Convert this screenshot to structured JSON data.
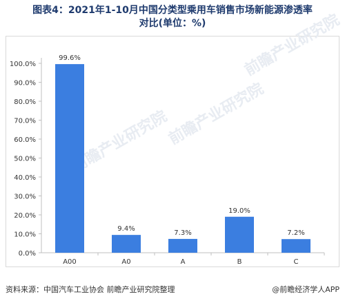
{
  "title_line1": "图表4：2021年1-10月中国分类型乘用车销售市场新能源渗透率",
  "title_line2": "对比(单位：%)",
  "footer": {
    "source": "资料来源：中国汽车工业协会 前瞻产业研究院整理",
    "brand": "@前瞻经济学人APP"
  },
  "watermark": "前瞻产业研究院",
  "colors": {
    "bar": "#3b7ee0",
    "axis": "#bfbfbf",
    "title": "#1f3b6e"
  },
  "chart_data": {
    "type": "bar",
    "categories": [
      "A00",
      "A0",
      "A",
      "B",
      "C"
    ],
    "values": [
      99.6,
      9.4,
      7.3,
      19.0,
      7.2
    ],
    "value_labels": [
      "99.6%",
      "9.4%",
      "7.3%",
      "19.0%",
      "7.2%"
    ],
    "title": "图表4：2021年1-10月中国分类型乘用车销售市场新能源渗透率对比(单位：%)",
    "xlabel": "",
    "ylabel": "",
    "ylim": [
      0,
      100
    ],
    "yticks": [
      0,
      10,
      20,
      30,
      40,
      50,
      60,
      70,
      80,
      90,
      100
    ],
    "ytick_labels": [
      "0.0%",
      "10.0%",
      "20.0%",
      "30.0%",
      "40.0%",
      "50.0%",
      "60.0%",
      "70.0%",
      "80.0%",
      "90.0%",
      "100.0%"
    ],
    "grid": false,
    "legend": "none"
  }
}
